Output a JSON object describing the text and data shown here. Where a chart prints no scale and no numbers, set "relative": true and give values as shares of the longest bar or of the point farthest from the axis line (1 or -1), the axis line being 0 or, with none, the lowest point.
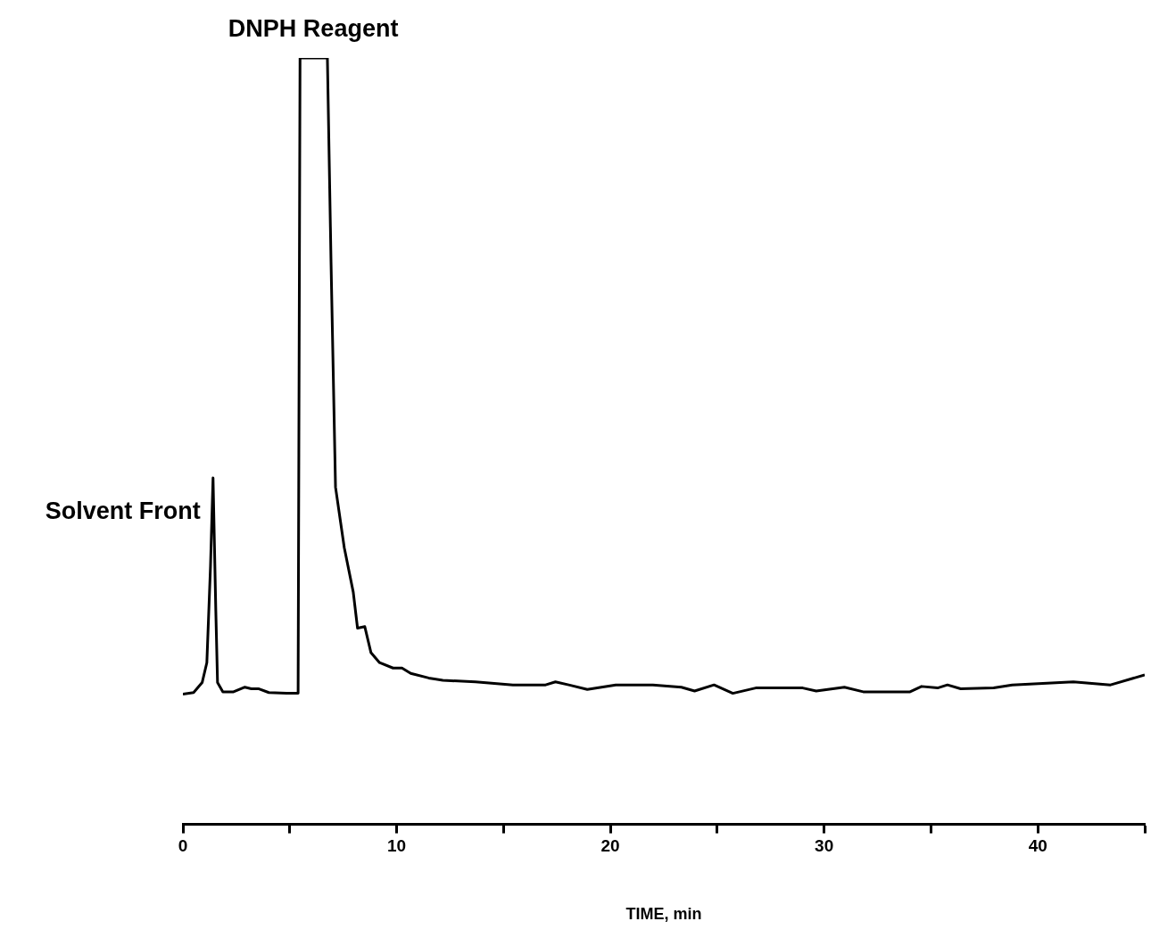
{
  "chart_data": {
    "type": "line",
    "relative": true,
    "xlabel": "TIME, min",
    "xlim": [
      0,
      45
    ],
    "xticks": [
      0,
      {
        "value": 5,
        "label": null
      },
      10,
      {
        "value": 15,
        "label": null
      },
      20,
      {
        "value": 25,
        "label": null
      },
      30,
      {
        "value": 35,
        "label": null
      },
      40,
      {
        "value": 45,
        "label": null
      }
    ],
    "grid": false,
    "legend": false,
    "marker": "none",
    "line_style": "solid",
    "tick_labels": "x",
    "annotations": [
      {
        "text": "Solvent Front",
        "x": 1.41,
        "y": 0.452
      },
      {
        "text": "DNPH Reagent",
        "x": 6.1,
        "y": 1
      }
    ],
    "series": [
      {
        "color": "#000000",
        "x": [
          0,
          0.5,
          0.9,
          1.12,
          1.29,
          1.41,
          1.54,
          1.62,
          1.87,
          2.37,
          2.9,
          3.2,
          3.53,
          4.02,
          4.85,
          5.39,
          5.48,
          6.76,
          6.93,
          7.14,
          7.55,
          7.97,
          8.17,
          8.51,
          8.8,
          9.2,
          9.83,
          10.25,
          10.66,
          11.5,
          12.16,
          13.69,
          15.44,
          16.97,
          17.43,
          18.05,
          18.92,
          20.25,
          21.99,
          23.32,
          23.94,
          24.85,
          25.73,
          26.8,
          29.0,
          29.63,
          30.95,
          31.83,
          34.02,
          34.56,
          35.31,
          35.77,
          36.39,
          37.93,
          38.8,
          41.66,
          43.4,
          45
        ],
        "values": [
          0.17,
          0.172,
          0.185,
          0.211,
          0.336,
          0.452,
          0.278,
          0.185,
          0.173,
          0.173,
          0.179,
          0.177,
          0.177,
          0.172,
          0.171,
          0.171,
          1,
          1,
          0.734,
          0.44,
          0.361,
          0.303,
          0.256,
          0.258,
          0.224,
          0.211,
          0.204,
          0.204,
          0.197,
          0.191,
          0.188,
          0.186,
          0.182,
          0.182,
          0.186,
          0.182,
          0.176,
          0.182,
          0.182,
          0.179,
          0.174,
          0.182,
          0.171,
          0.178,
          0.178,
          0.174,
          0.179,
          0.173,
          0.173,
          0.18,
          0.178,
          0.182,
          0.177,
          0.178,
          0.182,
          0.186,
          0.182,
          0.195
        ]
      }
    ]
  }
}
